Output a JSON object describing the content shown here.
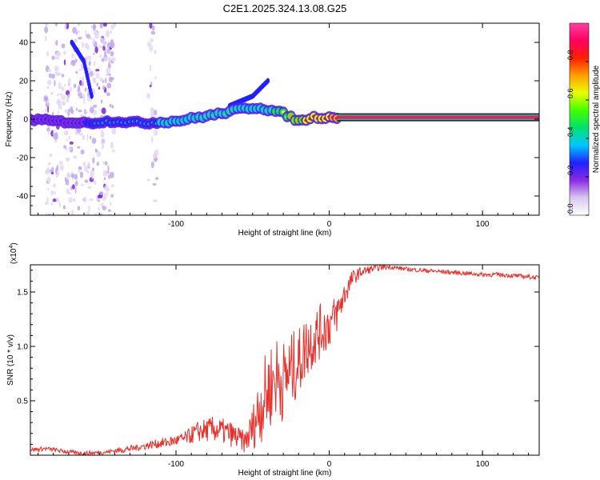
{
  "title": "C2E1.2025.324.13.08.G25",
  "chart_data": [
    {
      "type": "heatmap",
      "title": "C2E1.2025.324.13.08.G25",
      "xlabel": "Height of straight line (km)",
      "ylabel": "Frequency (Hz)",
      "xlim": [
        -195,
        137
      ],
      "ylim": [
        -50,
        50
      ],
      "x_ticks": [
        -100,
        0,
        100
      ],
      "x_tick_labels": [
        "-100",
        "0",
        "100"
      ],
      "y_ticks": [
        -40,
        -20,
        0,
        20,
        40
      ],
      "y_tick_labels": [
        "-40",
        "-20",
        "0",
        "20",
        "40"
      ],
      "colorbar": {
        "label": "Normalized spectral amplitude",
        "range": [
          0,
          1
        ],
        "ticks": [
          0.0,
          0.2,
          0.4,
          0.6,
          0.8
        ],
        "tick_labels": [
          "0.0",
          "0.2",
          "0.4",
          "0.6",
          "0.8"
        ],
        "colors": [
          "#ffffff",
          "#d8c8f0",
          "#8a2be2",
          "#2020ff",
          "#00c8ff",
          "#00e070",
          "#40ff00",
          "#e8ff00",
          "#ffa000",
          "#ff2000",
          "#ff0060",
          "#ff40a0"
        ]
      },
      "ridge": {
        "x": [
          -195,
          -180,
          -160,
          -140,
          -120,
          -100,
          -85,
          -70,
          -60,
          -50,
          -45,
          -40,
          -35,
          -30,
          -25,
          -20,
          -15,
          -10,
          -5,
          0,
          5,
          137
        ],
        "y": [
          0,
          -1,
          -2,
          -1,
          -2,
          -1,
          1,
          3,
          5,
          6,
          6,
          5,
          4,
          3,
          1,
          -1,
          0,
          1,
          1,
          1,
          1,
          1
        ],
        "amplitude": [
          0.3,
          0.3,
          0.3,
          0.35,
          0.4,
          0.45,
          0.5,
          0.5,
          0.5,
          0.45,
          0.45,
          0.5,
          0.55,
          0.6,
          0.7,
          0.75,
          0.8,
          0.8,
          0.85,
          0.9,
          0.95,
          0.95
        ]
      },
      "branches": [
        {
          "x": [
            -168,
            -160,
            -155
          ],
          "y": [
            40,
            30,
            12
          ],
          "amplitude": 0.3
        },
        {
          "x": [
            -65,
            -50,
            -40
          ],
          "y": [
            7,
            12,
            20
          ],
          "amplitude": 0.25
        }
      ],
      "scatter_regions": [
        {
          "x": [
            -185,
            -140
          ],
          "y": [
            -50,
            50
          ],
          "density": 0.7
        },
        {
          "x": [
            -118,
            -112
          ],
          "y": [
            -50,
            50
          ],
          "density": 0.4
        }
      ]
    },
    {
      "type": "line",
      "xlabel": "Height of straight line (km)",
      "ylabel": "SNR (10 * v/v)",
      "scale_label": "(x10",
      "scale_exponent": "4",
      "xlim": [
        -195,
        137
      ],
      "ylim": [
        0,
        1.75
      ],
      "x_ticks": [
        -100,
        0,
        100
      ],
      "x_tick_labels": [
        "-100",
        "0",
        "100"
      ],
      "y_ticks": [
        0.5,
        1.0,
        1.5
      ],
      "y_tick_labels": [
        "0.5",
        "1.0",
        "1.5"
      ],
      "series": [
        {
          "name": "SNR",
          "color": "#e8302a",
          "x": [
            -195,
            -185,
            -175,
            -165,
            -155,
            -145,
            -135,
            -125,
            -115,
            -105,
            -95,
            -85,
            -75,
            -65,
            -55,
            -50,
            -45,
            -40,
            -35,
            -30,
            -25,
            -20,
            -15,
            -10,
            -5,
            0,
            5,
            10,
            15,
            20,
            25,
            30,
            35,
            40,
            45,
            50,
            60,
            70,
            80,
            90,
            100,
            110,
            120,
            130,
            137
          ],
          "y": [
            0.05,
            0.06,
            0.04,
            0.02,
            0.02,
            0.03,
            0.05,
            0.07,
            0.1,
            0.12,
            0.15,
            0.22,
            0.24,
            0.2,
            0.12,
            0.25,
            0.45,
            0.6,
            0.72,
            0.68,
            0.78,
            0.85,
            1.0,
            1.08,
            1.15,
            1.2,
            1.3,
            1.48,
            1.62,
            1.68,
            1.7,
            1.72,
            1.73,
            1.73,
            1.72,
            1.71,
            1.7,
            1.69,
            1.68,
            1.67,
            1.66,
            1.66,
            1.65,
            1.64,
            1.63
          ],
          "noise": [
            0.02,
            0.02,
            0.02,
            0.02,
            0.02,
            0.02,
            0.03,
            0.03,
            0.04,
            0.05,
            0.06,
            0.1,
            0.12,
            0.12,
            0.1,
            0.2,
            0.35,
            0.4,
            0.4,
            0.38,
            0.35,
            0.32,
            0.3,
            0.28,
            0.25,
            0.22,
            0.18,
            0.12,
            0.08,
            0.05,
            0.04,
            0.03,
            0.03,
            0.02,
            0.02,
            0.02,
            0.02,
            0.02,
            0.02,
            0.02,
            0.02,
            0.02,
            0.02,
            0.02,
            0.02
          ]
        }
      ]
    }
  ]
}
